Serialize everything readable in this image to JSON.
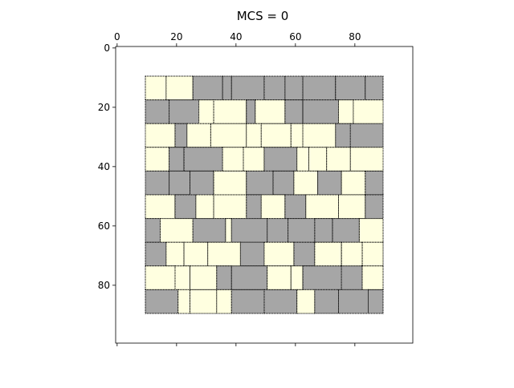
{
  "chart_data": {
    "type": "heatmap",
    "title": "MCS = 0",
    "xlabel": "",
    "ylabel": "",
    "xlim": [
      -0.5,
      99.5
    ],
    "ylim": [
      99.5,
      -0.5
    ],
    "y_inverted": true,
    "x_axis_position": "top",
    "x_ticks": [
      0,
      20,
      40,
      60,
      80
    ],
    "y_ticks": [
      0,
      20,
      40,
      60,
      80
    ],
    "grid": false,
    "colors": {
      "filled": "#a6a6a6",
      "empty": "#ffffe0",
      "border": "#000000"
    },
    "region": {
      "x": [
        10,
        90
      ],
      "y": [
        10,
        90
      ]
    },
    "rows": [
      {
        "y": [
          10,
          18
        ],
        "cells": [
          [
            10,
            17,
            "empty"
          ],
          [
            17,
            26,
            "empty"
          ],
          [
            26,
            36,
            "filled"
          ],
          [
            36,
            39,
            "filled"
          ],
          [
            39,
            50,
            "filled"
          ],
          [
            50,
            57,
            "filled"
          ],
          [
            57,
            63,
            "filled"
          ],
          [
            63,
            74,
            "filled"
          ],
          [
            74,
            84,
            "filled"
          ],
          [
            84,
            90,
            "filled"
          ]
        ]
      },
      {
        "y": [
          18,
          26
        ],
        "cells": [
          [
            10,
            18,
            "filled"
          ],
          [
            18,
            28,
            "filled"
          ],
          [
            28,
            33,
            "empty"
          ],
          [
            33,
            44,
            "empty"
          ],
          [
            44,
            47,
            "filled"
          ],
          [
            47,
            57,
            "empty"
          ],
          [
            57,
            63,
            "filled"
          ],
          [
            63,
            75,
            "filled"
          ],
          [
            75,
            80,
            "empty"
          ],
          [
            80,
            90,
            "empty"
          ]
        ]
      },
      {
        "y": [
          26,
          34
        ],
        "cells": [
          [
            10,
            20,
            "empty"
          ],
          [
            20,
            24,
            "filled"
          ],
          [
            24,
            32,
            "empty"
          ],
          [
            32,
            44,
            "empty"
          ],
          [
            44,
            49,
            "empty"
          ],
          [
            49,
            59,
            "empty"
          ],
          [
            59,
            63,
            "empty"
          ],
          [
            63,
            74,
            "empty"
          ],
          [
            74,
            79,
            "filled"
          ],
          [
            79,
            90,
            "filled"
          ]
        ]
      },
      {
        "y": [
          34,
          42
        ],
        "cells": [
          [
            10,
            18,
            "empty"
          ],
          [
            18,
            23,
            "filled"
          ],
          [
            23,
            36,
            "filled"
          ],
          [
            36,
            43,
            "empty"
          ],
          [
            43,
            50,
            "empty"
          ],
          [
            50,
            61,
            "filled"
          ],
          [
            61,
            65,
            "empty"
          ],
          [
            65,
            71,
            "empty"
          ],
          [
            71,
            79,
            "empty"
          ],
          [
            79,
            90,
            "empty"
          ]
        ]
      },
      {
        "y": [
          42,
          50
        ],
        "cells": [
          [
            10,
            18,
            "filled"
          ],
          [
            18,
            25,
            "filled"
          ],
          [
            25,
            33,
            "filled"
          ],
          [
            33,
            44,
            "empty"
          ],
          [
            44,
            53,
            "filled"
          ],
          [
            53,
            60,
            "filled"
          ],
          [
            60,
            68,
            "empty"
          ],
          [
            68,
            76,
            "filled"
          ],
          [
            76,
            84,
            "empty"
          ],
          [
            84,
            90,
            "filled"
          ]
        ]
      },
      {
        "y": [
          50,
          58
        ],
        "cells": [
          [
            10,
            20,
            "empty"
          ],
          [
            20,
            27,
            "filled"
          ],
          [
            27,
            33,
            "empty"
          ],
          [
            33,
            44,
            "empty"
          ],
          [
            44,
            49,
            "filled"
          ],
          [
            49,
            57,
            "empty"
          ],
          [
            57,
            64,
            "filled"
          ],
          [
            64,
            75,
            "empty"
          ],
          [
            75,
            84,
            "empty"
          ],
          [
            84,
            90,
            "filled"
          ]
        ]
      },
      {
        "y": [
          58,
          66
        ],
        "cells": [
          [
            10,
            15,
            "filled"
          ],
          [
            15,
            26,
            "empty"
          ],
          [
            26,
            37,
            "filled"
          ],
          [
            37,
            39,
            "empty"
          ],
          [
            39,
            51,
            "filled"
          ],
          [
            51,
            58,
            "filled"
          ],
          [
            58,
            67,
            "filled"
          ],
          [
            67,
            73,
            "filled"
          ],
          [
            73,
            82,
            "filled"
          ],
          [
            82,
            90,
            "empty"
          ]
        ]
      },
      {
        "y": [
          66,
          74
        ],
        "cells": [
          [
            10,
            17,
            "filled"
          ],
          [
            17,
            23,
            "empty"
          ],
          [
            23,
            31,
            "empty"
          ],
          [
            31,
            42,
            "empty"
          ],
          [
            42,
            50,
            "filled"
          ],
          [
            50,
            60,
            "empty"
          ],
          [
            60,
            67,
            "filled"
          ],
          [
            67,
            76,
            "empty"
          ],
          [
            76,
            83,
            "empty"
          ],
          [
            83,
            90,
            "empty"
          ]
        ]
      },
      {
        "y": [
          74,
          82
        ],
        "cells": [
          [
            10,
            20,
            "empty"
          ],
          [
            20,
            25,
            "empty"
          ],
          [
            25,
            34,
            "empty"
          ],
          [
            34,
            39,
            "filled"
          ],
          [
            39,
            51,
            "filled"
          ],
          [
            51,
            59,
            "empty"
          ],
          [
            59,
            63,
            "empty"
          ],
          [
            63,
            76,
            "filled"
          ],
          [
            76,
            83,
            "filled"
          ],
          [
            83,
            90,
            "empty"
          ]
        ]
      },
      {
        "y": [
          82,
          90
        ],
        "cells": [
          [
            10,
            21,
            "filled"
          ],
          [
            21,
            25,
            "empty"
          ],
          [
            25,
            34,
            "empty"
          ],
          [
            34,
            39,
            "empty"
          ],
          [
            39,
            50,
            "filled"
          ],
          [
            50,
            61,
            "filled"
          ],
          [
            61,
            67,
            "empty"
          ],
          [
            67,
            75,
            "filled"
          ],
          [
            75,
            85,
            "filled"
          ],
          [
            85,
            90,
            "filled"
          ]
        ]
      }
    ]
  }
}
